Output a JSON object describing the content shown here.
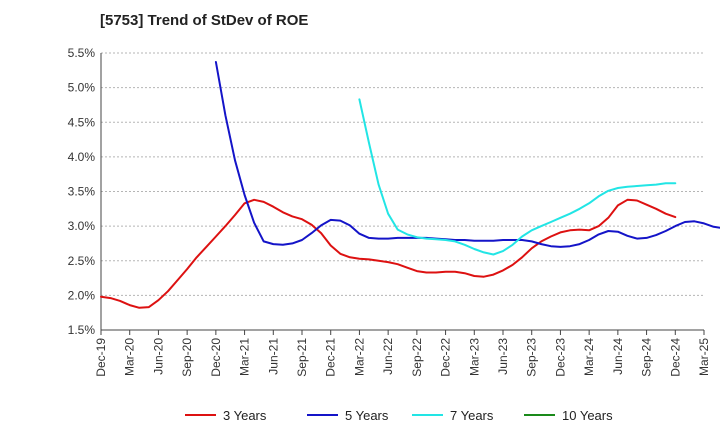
{
  "chart_data": {
    "type": "line",
    "title": "[5753]  Trend of StDev of ROE",
    "xlabel": "",
    "ylabel": "",
    "ylim": [
      1.5,
      5.5
    ],
    "yticks": [
      1.5,
      2.0,
      2.5,
      3.0,
      3.5,
      4.0,
      4.5,
      5.0,
      5.5
    ],
    "ytick_labels": [
      "1.5%",
      "2.0%",
      "2.5%",
      "3.0%",
      "3.5%",
      "4.0%",
      "4.5%",
      "5.0%",
      "5.5%"
    ],
    "x_tick_labels": [
      "Dec-19",
      "Mar-20",
      "Jun-20",
      "Sep-20",
      "Dec-20",
      "Mar-21",
      "Jun-21",
      "Sep-21",
      "Dec-21",
      "Mar-22",
      "Jun-22",
      "Sep-22",
      "Dec-22",
      "Mar-23",
      "Jun-23",
      "Sep-23",
      "Dec-23",
      "Mar-24",
      "Jun-24",
      "Sep-24",
      "Dec-24",
      "Mar-25"
    ],
    "grid": "horizontal dashed",
    "legend_position": "bottom",
    "series": [
      {
        "name": "3 Years",
        "color": "#dd1111",
        "x_start_index": 0,
        "values": [
          1.98,
          1.96,
          1.92,
          1.86,
          1.82,
          1.83,
          1.93,
          2.06,
          2.22,
          2.38,
          2.55,
          2.7,
          2.85,
          3.0,
          3.16,
          3.33,
          3.38,
          3.35,
          3.28,
          3.2,
          3.14,
          3.1,
          3.02,
          2.9,
          2.72,
          2.6,
          2.55,
          2.53,
          2.52,
          2.5,
          2.48,
          2.45,
          2.4,
          2.35,
          2.33,
          2.33,
          2.34,
          2.34,
          2.32,
          2.28,
          2.27,
          2.3,
          2.36,
          2.44,
          2.55,
          2.68,
          2.78,
          2.85,
          2.91,
          2.94,
          2.95,
          2.94,
          3.0,
          3.12,
          3.3,
          3.38,
          3.37,
          3.31,
          3.25,
          3.18,
          3.13
        ]
      },
      {
        "name": "5 Years",
        "color": "#1414c8",
        "x_start_index": 0,
        "values": [
          null,
          null,
          null,
          null,
          null,
          null,
          null,
          null,
          null,
          null,
          null,
          null,
          5.37,
          4.6,
          3.95,
          3.45,
          3.05,
          2.78,
          2.74,
          2.73,
          2.75,
          2.8,
          2.9,
          3.01,
          3.09,
          3.08,
          3.01,
          2.89,
          2.83,
          2.82,
          2.82,
          2.83,
          2.83,
          2.83,
          2.83,
          2.82,
          2.81,
          2.8,
          2.8,
          2.79,
          2.79,
          2.79,
          2.8,
          2.8,
          2.8,
          2.78,
          2.74,
          2.71,
          2.7,
          2.71,
          2.74,
          2.8,
          2.88,
          2.93,
          2.92,
          2.86,
          2.82,
          2.83,
          2.87,
          2.93,
          3.0,
          3.06,
          3.07,
          3.04,
          2.99,
          2.97,
          2.97,
          2.97
        ]
      },
      {
        "name": "7 Years",
        "color": "#22e5e5",
        "x_start_index": 0,
        "values": []
      },
      {
        "name": "10 Years",
        "color": "#1a8a1a",
        "x_start_index": 0,
        "values": []
      }
    ],
    "series_7y": {
      "x": [
        27,
        28,
        29,
        30,
        31,
        32,
        33,
        34,
        35,
        36,
        37,
        38,
        39,
        40,
        41,
        42,
        43,
        44,
        45,
        46,
        47,
        48,
        49,
        50,
        51,
        52,
        53,
        54,
        55,
        56,
        57,
        58,
        59,
        60
      ],
      "values": [
        4.83,
        4.2,
        3.6,
        3.18,
        2.95,
        2.88,
        2.84,
        2.82,
        2.81,
        2.8,
        2.78,
        2.73,
        2.67,
        2.62,
        2.59,
        2.64,
        2.73,
        2.85,
        2.94,
        3.0,
        3.06,
        3.12,
        3.18,
        3.25,
        3.33,
        3.43,
        3.51,
        3.55,
        3.57,
        3.58,
        3.59,
        3.6,
        3.62,
        3.62
      ]
    }
  }
}
